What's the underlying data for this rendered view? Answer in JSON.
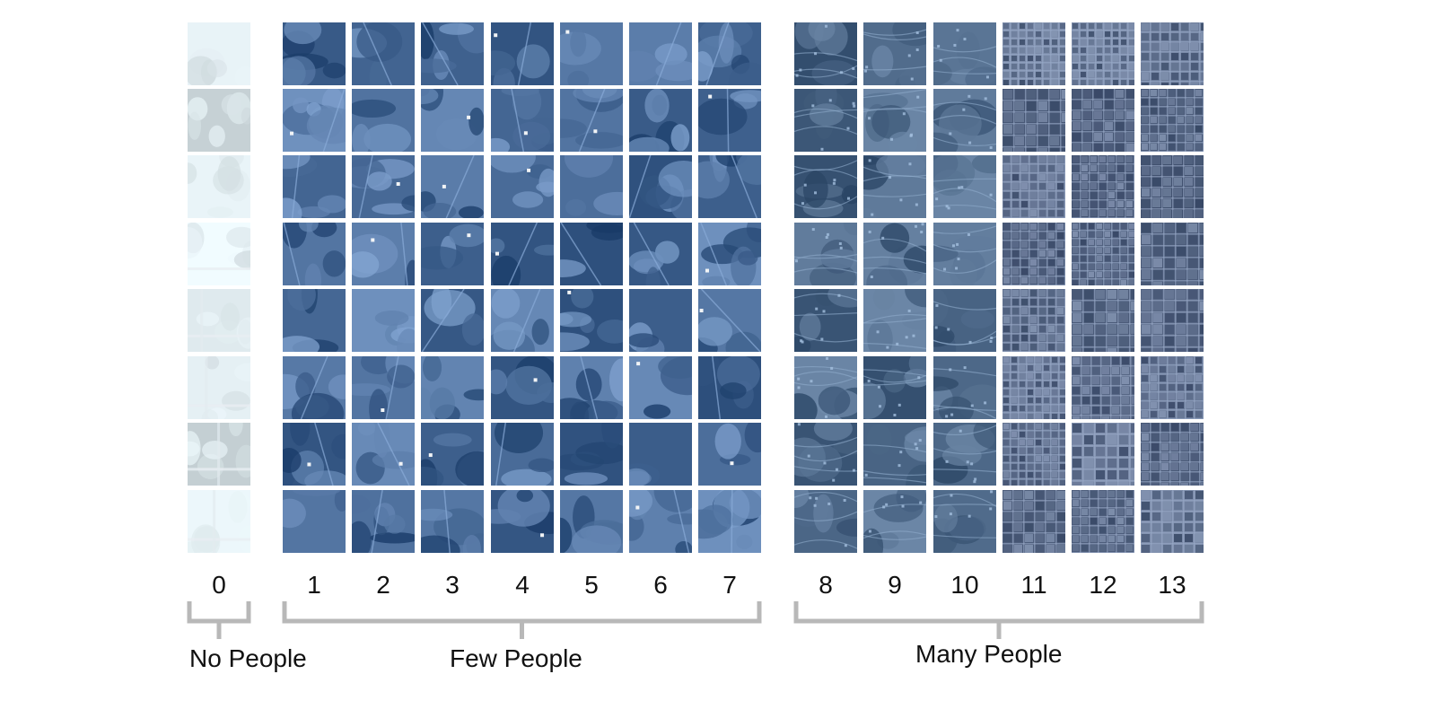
{
  "figure": {
    "columns": [
      {
        "label": "0",
        "theme": "bare"
      },
      {
        "label": "1",
        "theme": "rural"
      },
      {
        "label": "2",
        "theme": "rural"
      },
      {
        "label": "3",
        "theme": "rural"
      },
      {
        "label": "4",
        "theme": "rural"
      },
      {
        "label": "5",
        "theme": "rural"
      },
      {
        "label": "6",
        "theme": "rural"
      },
      {
        "label": "7",
        "theme": "rural"
      },
      {
        "label": "8",
        "theme": "suburban"
      },
      {
        "label": "9",
        "theme": "suburban"
      },
      {
        "label": "10",
        "theme": "suburban"
      },
      {
        "label": "11",
        "theme": "urban"
      },
      {
        "label": "12",
        "theme": "urban"
      },
      {
        "label": "13",
        "theme": "urban"
      }
    ],
    "rows_per_column": 8,
    "groups": [
      {
        "label": "No People",
        "first_column": 0,
        "last_column": 0
      },
      {
        "label": "Few People",
        "first_column": 1,
        "last_column": 7
      },
      {
        "label": "Many People",
        "first_column": 8,
        "last_column": 13
      }
    ],
    "colors": {
      "bracket": "#b8b8b8",
      "text": "#111111",
      "bare_tile": "#dde8ec",
      "rural_tile": "#4d6f9c",
      "suburban_tile": "#4a6585",
      "urban_tile": "#5e6e8c"
    }
  }
}
